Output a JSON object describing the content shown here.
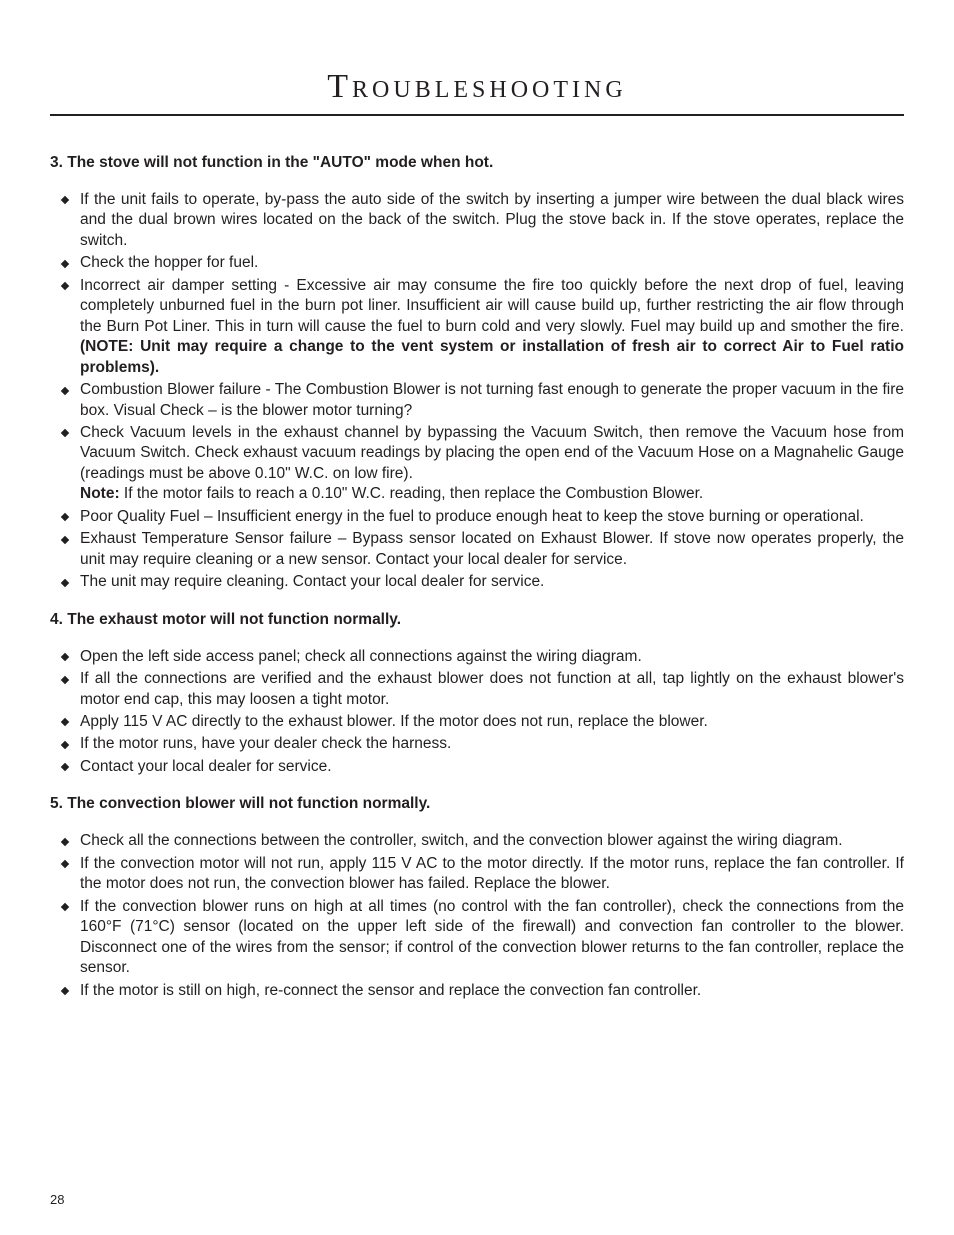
{
  "page": {
    "title": "Troubleshooting",
    "number": "28"
  },
  "sections": [
    {
      "heading": "3. The stove will not function in the \"AUTO\" mode when hot.",
      "items": [
        {
          "text": "If the unit fails to operate, by-pass the auto side of the switch by inserting a jumper wire between the dual black wires and the dual brown wires located on the back of the switch. Plug the stove back in.  If the stove operates, replace the switch.",
          "justify": true
        },
        {
          "text": "Check the hopper for fuel.",
          "justify": false
        },
        {
          "text": "Incorrect air damper setting - Excessive air may consume the fire too quickly before the next drop of fuel, leaving completely unburned fuel in the burn pot liner. Insufficient air will cause build up, further restricting the air flow through the Burn Pot Liner. This in turn will cause the fuel to burn cold and very slowly.  Fuel may build up and smother the fire. ",
          "boldTail": "(NOTE: Unit may require a change to the vent system or installation of fresh air to correct Air to Fuel ratio problems).",
          "justify": true
        },
        {
          "text": "Combustion Blower failure - The Combustion Blower is not turning fast enough to generate the proper vacuum in the fire box. Visual Check – is the blower motor turning?",
          "justify": true
        },
        {
          "text": "Check Vacuum levels in the exhaust channel by bypassing the Vacuum Switch, then remove the Vacuum hose from Vacuum Switch.  Check exhaust vacuum readings by placing the open end of the Vacuum Hose on a Magnahelic Gauge (readings must be above 0.10\" W.C. on low fire).",
          "noteLabel": "Note:",
          "noteText": " If the motor fails to reach a 0.10\" W.C. reading, then replace the Combustion Blower.",
          "justify": true
        },
        {
          "text": "Poor Quality Fuel – Insufficient energy in the fuel to produce enough heat to keep the stove burning or operational.",
          "justify": true
        },
        {
          "text": "Exhaust Temperature Sensor failure – Bypass sensor located on Exhaust Blower. If stove now operates properly, the unit may require cleaning or a new sensor.  Contact your local dealer for service.",
          "justify": true
        },
        {
          "text": "The unit may require cleaning.  Contact your local dealer for service.",
          "justify": false
        }
      ]
    },
    {
      "heading": "4. The exhaust motor will not function normally.",
      "items": [
        {
          "text": "Open the left side access panel; check all connections against the wiring diagram.",
          "justify": false
        },
        {
          "text": "If all the connections are verified and the exhaust blower does not function at all, tap lightly on the exhaust blower's motor end cap, this may loosen a tight motor.",
          "justify": true
        },
        {
          "text": "Apply 115 V AC directly to the exhaust blower.  If the motor does not run, replace the blower.",
          "justify": false
        },
        {
          "text": "If the motor runs, have your dealer check the harness.",
          "justify": false
        },
        {
          "text": "Contact your local dealer for service.",
          "justify": false
        }
      ]
    },
    {
      "heading": "5. The convection blower will not function normally.",
      "items": [
        {
          "text": "Check all the connections between the controller, switch, and the convection blower against the wiring diagram.",
          "justify": true
        },
        {
          "text": "If the convection motor will not run, apply 115 V AC to the motor directly.  If the motor runs, replace the fan controller.  If the motor does not run, the convection blower has failed.  Replace the blower.",
          "justify": true
        },
        {
          "text": "If the convection blower runs on high at all times (no control with the fan controller), check the connections from the 160°F (71°C) sensor (located on the upper left side of the firewall) and convection fan controller to the blower.  Disconnect one of the wires from the sensor; if control of the convection blower returns to the fan controller, replace the sensor.",
          "justify": true
        },
        {
          "text": "If the motor is still on high, re-connect the sensor and replace the convection fan controller.",
          "justify": false
        }
      ]
    }
  ]
}
